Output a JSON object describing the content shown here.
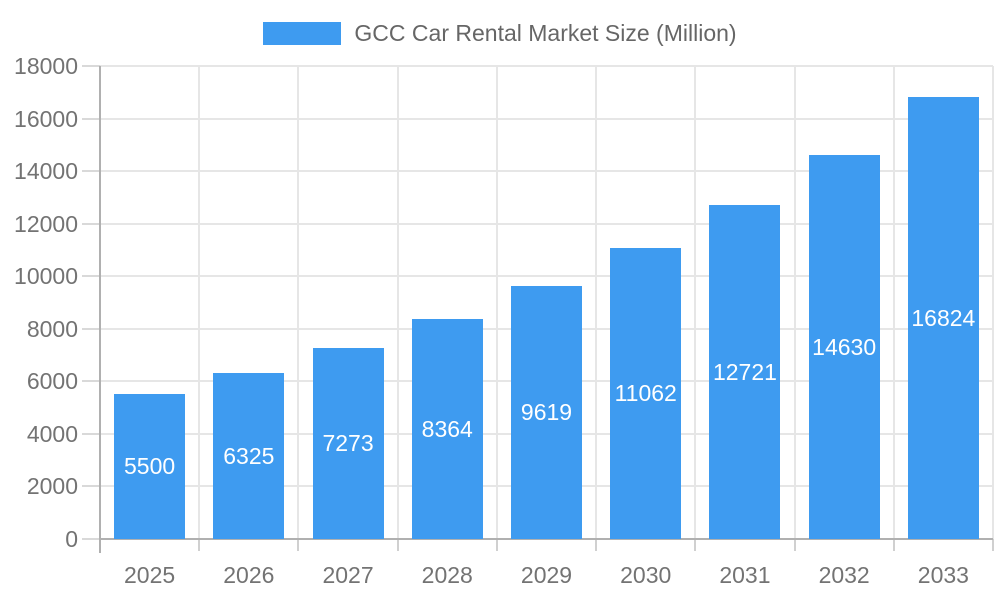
{
  "legend": {
    "label": "GCC Car Rental Market Size (Million)"
  },
  "colors": {
    "bar": "#3E9BF0",
    "axis_line": "#b0b0b0",
    "grid_line": "#e6e6e6",
    "tick": "#d9d9d9",
    "axis_label": "#737373",
    "legend_text": "#666666",
    "bar_label": "#ffffff",
    "background": "#ffffff"
  },
  "chart_data": {
    "type": "bar",
    "title": "GCC Car Rental Market Size (Million)",
    "series_name": "GCC Car Rental Market Size (Million)",
    "categories": [
      "2025",
      "2026",
      "2027",
      "2028",
      "2029",
      "2030",
      "2031",
      "2032",
      "2033"
    ],
    "values": [
      5500,
      6325,
      7273,
      8364,
      9619,
      11062,
      12721,
      14630,
      16824
    ],
    "xlabel": "",
    "ylabel": "",
    "ylim": [
      0,
      18000
    ],
    "ytick_interval": 2000,
    "y_ticks": [
      0,
      2000,
      4000,
      6000,
      8000,
      10000,
      12000,
      14000,
      16000,
      18000
    ],
    "grid": true,
    "legend_position": "top-center",
    "bar_label_position": "inside-center"
  }
}
